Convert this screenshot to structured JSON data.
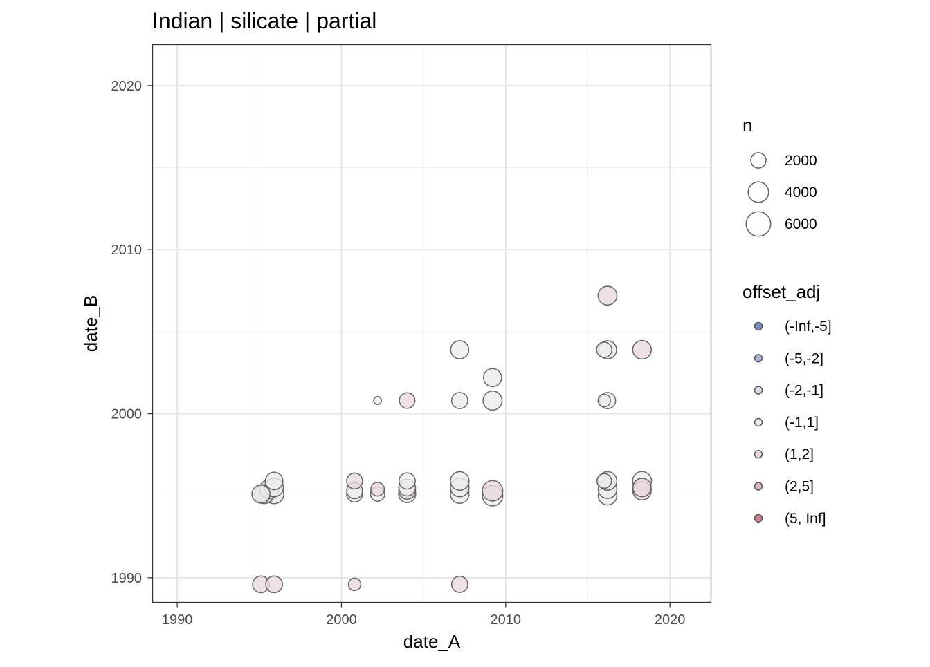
{
  "chart_data": {
    "type": "scatter",
    "title": "Indian | silicate | partial",
    "xlabel": "date_A",
    "ylabel": "date_B",
    "xlim": [
      1988.5,
      2022.5
    ],
    "ylim": [
      1988.5,
      2022.5
    ],
    "x_ticks": [
      1990,
      2000,
      2010,
      2020
    ],
    "y_ticks": [
      1990,
      2000,
      2010,
      2020
    ],
    "grid": true,
    "size_legend": {
      "title": "n",
      "entries": [
        {
          "label": "2000",
          "value": 2000
        },
        {
          "label": "4000",
          "value": 4000
        },
        {
          "label": "6000",
          "value": 6000
        }
      ]
    },
    "color_legend": {
      "title": "offset_adj",
      "entries": [
        {
          "label": "(-Inf,-5]",
          "color": "#7a8fc4"
        },
        {
          "label": "(-5,-2]",
          "color": "#a9b4d3"
        },
        {
          "label": "(-2,-1]",
          "color": "#d6dbe7"
        },
        {
          "label": "(-1,1]",
          "color": "#ececec"
        },
        {
          "label": "(1,2]",
          "color": "#e8dadd"
        },
        {
          "label": "(2,5]",
          "color": "#d9b7bf"
        },
        {
          "label": "(5, Inf]",
          "color": "#c98093"
        }
      ]
    },
    "points": [
      {
        "x": 1995.1,
        "y": 1989.6,
        "n": 2500,
        "bin": "(1,2]"
      },
      {
        "x": 1995.9,
        "y": 1989.6,
        "n": 2500,
        "bin": "(1,2]"
      },
      {
        "x": 2000.8,
        "y": 1989.6,
        "n": 1200,
        "bin": "(1,2]"
      },
      {
        "x": 2007.2,
        "y": 1989.6,
        "n": 2300,
        "bin": "(1,2]"
      },
      {
        "x": 1995.1,
        "y": 1995.1,
        "n": 3000,
        "bin": "(-1,1]"
      },
      {
        "x": 1995.3,
        "y": 1995.1,
        "n": 3400,
        "bin": "(1,2]"
      },
      {
        "x": 1995.5,
        "y": 1995.2,
        "n": 3600,
        "bin": "(1,2]"
      },
      {
        "x": 1995.6,
        "y": 1995.4,
        "n": 3400,
        "bin": "(1,2]"
      },
      {
        "x": 1995.9,
        "y": 1995.1,
        "n": 3500,
        "bin": "(-1,1]"
      },
      {
        "x": 1995.9,
        "y": 1995.5,
        "n": 3200,
        "bin": "(-1,1]"
      },
      {
        "x": 1995.9,
        "y": 1995.9,
        "n": 2800,
        "bin": "(-1,1]"
      },
      {
        "x": 2000.8,
        "y": 1995.1,
        "n": 2200,
        "bin": "(-1,1]"
      },
      {
        "x": 2000.8,
        "y": 1995.3,
        "n": 2200,
        "bin": "(-1,1]"
      },
      {
        "x": 2000.8,
        "y": 1995.9,
        "n": 2200,
        "bin": "(1,2]"
      },
      {
        "x": 2002.2,
        "y": 1995.1,
        "n": 1700,
        "bin": "(-1,1]"
      },
      {
        "x": 2002.2,
        "y": 1995.4,
        "n": 1500,
        "bin": "(1,2]"
      },
      {
        "x": 2004.0,
        "y": 1995.1,
        "n": 2600,
        "bin": "(-1,1]"
      },
      {
        "x": 2004.0,
        "y": 1995.3,
        "n": 2500,
        "bin": "(1,2]"
      },
      {
        "x": 2004.0,
        "y": 1995.5,
        "n": 2500,
        "bin": "(-1,1]"
      },
      {
        "x": 2004.0,
        "y": 1995.9,
        "n": 2300,
        "bin": "(-1,1]"
      },
      {
        "x": 2007.2,
        "y": 1995.1,
        "n": 3200,
        "bin": "(-1,1]"
      },
      {
        "x": 2007.2,
        "y": 1995.5,
        "n": 3200,
        "bin": "(-1,1]"
      },
      {
        "x": 2007.2,
        "y": 1995.9,
        "n": 3200,
        "bin": "(-1,1]"
      },
      {
        "x": 2009.2,
        "y": 1995.0,
        "n": 4000,
        "bin": "(-1,1]"
      },
      {
        "x": 2009.2,
        "y": 1995.3,
        "n": 4000,
        "bin": "(1,2]"
      },
      {
        "x": 2016.0,
        "y": 1995.9,
        "n": 1800,
        "bin": "(-1,1]"
      },
      {
        "x": 2016.2,
        "y": 1995.0,
        "n": 3200,
        "bin": "(-1,1]"
      },
      {
        "x": 2016.2,
        "y": 1995.4,
        "n": 3200,
        "bin": "(-1,1]"
      },
      {
        "x": 2016.2,
        "y": 1995.9,
        "n": 3200,
        "bin": "(-1,1]"
      },
      {
        "x": 2018.3,
        "y": 1995.3,
        "n": 3100,
        "bin": "(1,2]"
      },
      {
        "x": 2018.3,
        "y": 1995.5,
        "n": 3100,
        "bin": "(1,2]"
      },
      {
        "x": 2018.3,
        "y": 1995.9,
        "n": 3300,
        "bin": "(-1,1]"
      },
      {
        "x": 2002.2,
        "y": 2000.8,
        "n": 350,
        "bin": "(-1,1]"
      },
      {
        "x": 2004.0,
        "y": 2000.8,
        "n": 2100,
        "bin": "(1,2]"
      },
      {
        "x": 2007.2,
        "y": 2000.8,
        "n": 2300,
        "bin": "(-1,1]"
      },
      {
        "x": 2009.2,
        "y": 2000.8,
        "n": 3400,
        "bin": "(-1,1]"
      },
      {
        "x": 2016.0,
        "y": 2000.8,
        "n": 1200,
        "bin": "(-1,1]"
      },
      {
        "x": 2016.2,
        "y": 2000.8,
        "n": 2300,
        "bin": "(-1,1]"
      },
      {
        "x": 2009.2,
        "y": 2002.2,
        "n": 3000,
        "bin": "(-1,1]"
      },
      {
        "x": 2007.2,
        "y": 2003.9,
        "n": 3000,
        "bin": "(-1,1]"
      },
      {
        "x": 2016.0,
        "y": 2003.9,
        "n": 2000,
        "bin": "(-1,1]"
      },
      {
        "x": 2016.2,
        "y": 2003.9,
        "n": 3000,
        "bin": "(-1,1]"
      },
      {
        "x": 2018.3,
        "y": 2003.9,
        "n": 3200,
        "bin": "(1,2]"
      },
      {
        "x": 2016.2,
        "y": 2007.2,
        "n": 3300,
        "bin": "(1,2]"
      }
    ]
  }
}
